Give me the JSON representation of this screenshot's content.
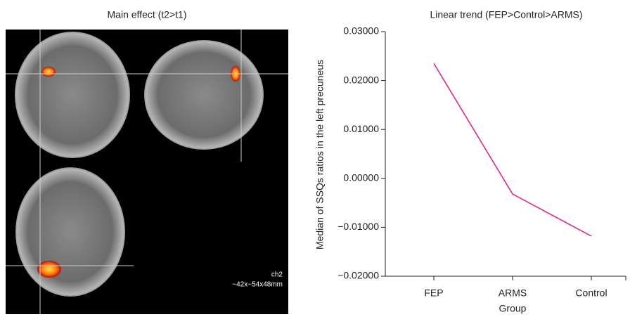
{
  "brain_panel": {
    "title": "Main effect (t2>t1)",
    "label": "ch2",
    "coords": "−42x−54x48mm"
  },
  "chart_data": {
    "type": "line",
    "title": "Linear trend (FEP>Control>ARMS)",
    "x_label": "Group",
    "y_label": "Median of SSQs ratios in the left precuneus",
    "categories": [
      "FEP",
      "ARMS",
      "Control"
    ],
    "values": [
      0.0235,
      -0.0032,
      -0.0118
    ],
    "color": "#e0288c",
    "ylim": [
      -0.02,
      0.03
    ],
    "yticks": [
      {
        "value": -0.02,
        "label": "−0.02000"
      },
      {
        "value": -0.01,
        "label": "−0.01000"
      },
      {
        "value": 0,
        "label": "0.00000"
      },
      {
        "value": 0.01,
        "label": "0.01000"
      },
      {
        "value": 0.02,
        "label": "0.02000"
      },
      {
        "value": 0.03,
        "label": "0.03000"
      }
    ]
  }
}
